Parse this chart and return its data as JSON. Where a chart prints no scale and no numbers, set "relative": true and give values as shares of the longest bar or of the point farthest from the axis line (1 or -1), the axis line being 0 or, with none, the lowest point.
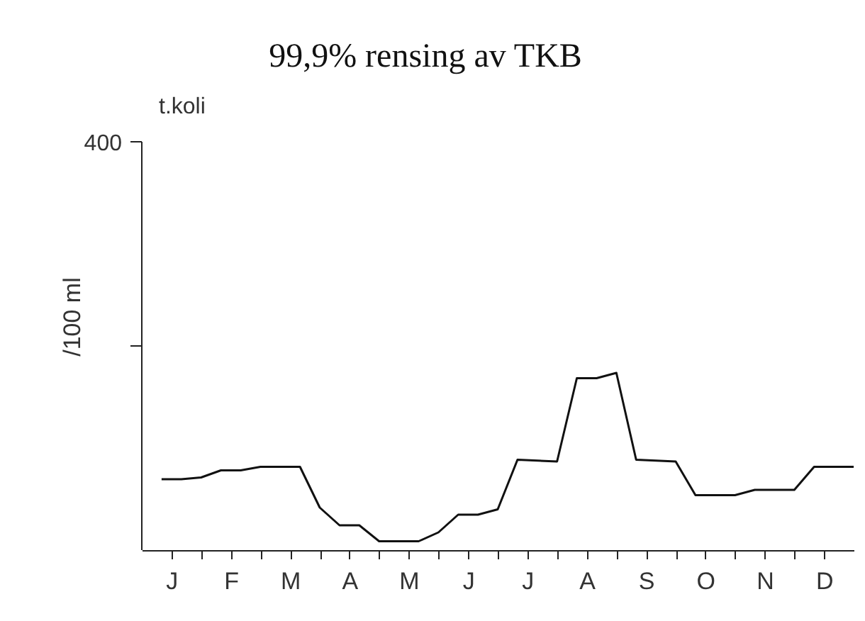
{
  "chart_data": {
    "type": "line",
    "title": "99,9% rensing av TKB",
    "ylabel": "/100 ml",
    "relative": true,
    "annotations": [
      "t.koli",
      "400"
    ],
    "categories": [
      null,
      null,
      null,
      "J",
      null,
      null,
      null,
      null,
      null,
      "F",
      null,
      null,
      null,
      null,
      null,
      "M",
      null,
      null,
      null,
      null,
      null,
      "A",
      null,
      null,
      null,
      null,
      null,
      "M",
      null,
      null,
      null,
      null,
      null,
      "J",
      null,
      null,
      null,
      null,
      null,
      "J",
      null,
      null,
      null,
      null,
      null,
      "A",
      null,
      null,
      null,
      null,
      null,
      "S",
      null,
      null,
      null,
      null,
      null,
      "O",
      null,
      null,
      null,
      null,
      null,
      "N",
      null,
      null,
      null,
      null,
      null,
      "D",
      null,
      null,
      null
    ],
    "series": [
      {
        "color": "#111111",
        "values": [
          null,
          null,
          0.4,
          null,
          0.4,
          null,
          0.41,
          null,
          0.45,
          null,
          0.45,
          null,
          0.47,
          null,
          0.47,
          null,
          0.47,
          null,
          0.24,
          null,
          0.14,
          null,
          0.14,
          null,
          0.05,
          null,
          null,
          null,
          0.05,
          null,
          0.1,
          null,
          0.2,
          null,
          0.2,
          null,
          0.23,
          null,
          0.51,
          null,
          null,
          null,
          0.5,
          null,
          0.97,
          null,
          0.97,
          null,
          1,
          null,
          0.51,
          null,
          null,
          null,
          0.5,
          null,
          0.31,
          null,
          null,
          null,
          0.31,
          null,
          0.34,
          null,
          null,
          null,
          0.34,
          null,
          0.47,
          null,
          null,
          null,
          0.47
        ]
      }
    ],
    "grid": false,
    "marker": "none",
    "line_style": "solid"
  }
}
